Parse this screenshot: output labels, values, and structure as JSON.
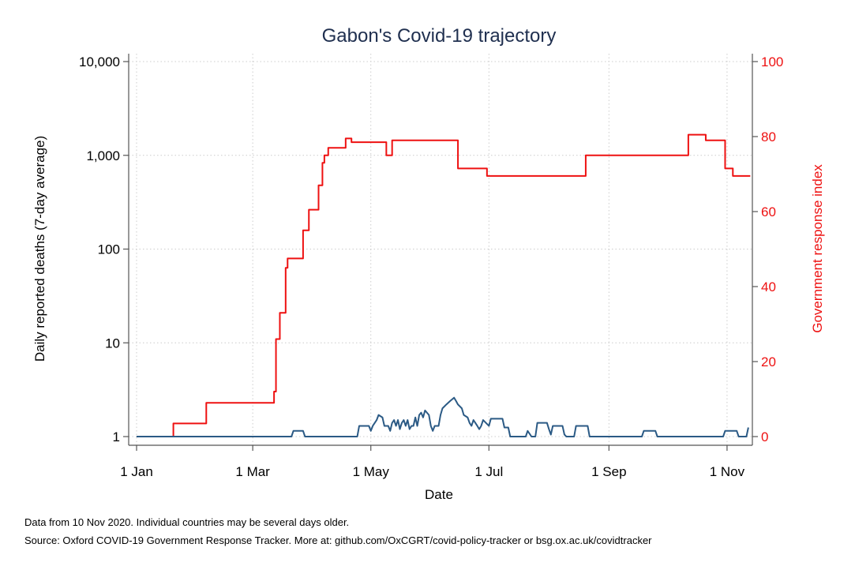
{
  "chart_data": {
    "type": "line",
    "title": "Gabon's Covid-19 trajectory",
    "xlabel": "Date",
    "ylabel_left": "Daily reported deaths (7-day average)",
    "ylabel_right": "Government response index",
    "y_left_scale": "log",
    "y_left_range": [
      1,
      10000
    ],
    "y_left_ticks": [
      "1",
      "10",
      "100",
      "1,000",
      "10,000"
    ],
    "y_right_range": [
      0,
      100
    ],
    "y_right_ticks": [
      "0",
      "20",
      "40",
      "60",
      "80",
      "100"
    ],
    "x_range": [
      "2020-01-01",
      "2020-11-10"
    ],
    "x_ticks": [
      "1 Jan",
      "1 Mar",
      "1 May",
      "1 Jul",
      "1 Sep",
      "1 Nov"
    ],
    "grid": true,
    "colors": {
      "deaths": "#2b5a85",
      "response": "#ee1111",
      "axis": "#555555",
      "grid": "#cccccc",
      "title": "#1f2f4f"
    },
    "series": [
      {
        "axis": "right",
        "points": [
          [
            "2020-01-01",
            0
          ],
          [
            "2020-01-20",
            0
          ],
          [
            "2020-01-20",
            3.5
          ],
          [
            "2020-02-06",
            3.5
          ],
          [
            "2020-02-06",
            9
          ],
          [
            "2020-03-12",
            9
          ],
          [
            "2020-03-12",
            12
          ],
          [
            "2020-03-13",
            12
          ],
          [
            "2020-03-13",
            26
          ],
          [
            "2020-03-15",
            26
          ],
          [
            "2020-03-15",
            33
          ],
          [
            "2020-03-18",
            33
          ],
          [
            "2020-03-18",
            45
          ],
          [
            "2020-03-19",
            45
          ],
          [
            "2020-03-19",
            47.5
          ],
          [
            "2020-03-27",
            47.5
          ],
          [
            "2020-03-27",
            55
          ],
          [
            "2020-03-30",
            55
          ],
          [
            "2020-03-30",
            60.5
          ],
          [
            "2020-04-04",
            60.5
          ],
          [
            "2020-04-04",
            67
          ],
          [
            "2020-04-06",
            67
          ],
          [
            "2020-04-06",
            73
          ],
          [
            "2020-04-07",
            73
          ],
          [
            "2020-04-07",
            75
          ],
          [
            "2020-04-09",
            75
          ],
          [
            "2020-04-09",
            77
          ],
          [
            "2020-04-18",
            77
          ],
          [
            "2020-04-18",
            79.5
          ],
          [
            "2020-04-21",
            79.5
          ],
          [
            "2020-04-21",
            78.5
          ],
          [
            "2020-05-09",
            78.5
          ],
          [
            "2020-05-09",
            75
          ],
          [
            "2020-05-12",
            75
          ],
          [
            "2020-05-12",
            79
          ],
          [
            "2020-06-15",
            79
          ],
          [
            "2020-06-15",
            71.5
          ],
          [
            "2020-06-30",
            71.5
          ],
          [
            "2020-06-30",
            69.5
          ],
          [
            "2020-08-20",
            69.5
          ],
          [
            "2020-08-20",
            75
          ],
          [
            "2020-10-12",
            75
          ],
          [
            "2020-10-12",
            80.5
          ],
          [
            "2020-10-21",
            80.5
          ],
          [
            "2020-10-21",
            79
          ],
          [
            "2020-10-31",
            79
          ],
          [
            "2020-10-31",
            71.5
          ],
          [
            "2020-11-04",
            71.5
          ],
          [
            "2020-11-04",
            69.5
          ],
          [
            "2020-11-13",
            69.5
          ]
        ]
      },
      {
        "axis": "left",
        "points": [
          [
            "2020-01-01",
            1
          ],
          [
            "2020-03-21",
            1
          ],
          [
            "2020-03-22",
            1.15
          ],
          [
            "2020-03-27",
            1.15
          ],
          [
            "2020-03-28",
            1
          ],
          [
            "2020-04-24",
            1
          ],
          [
            "2020-04-25",
            1.3
          ],
          [
            "2020-04-30",
            1.3
          ],
          [
            "2020-05-01",
            1.15
          ],
          [
            "2020-05-02",
            1.3
          ],
          [
            "2020-05-04",
            1.5
          ],
          [
            "2020-05-05",
            1.7
          ],
          [
            "2020-05-07",
            1.6
          ],
          [
            "2020-05-08",
            1.3
          ],
          [
            "2020-05-10",
            1.3
          ],
          [
            "2020-05-11",
            1.15
          ],
          [
            "2020-05-12",
            1.4
          ],
          [
            "2020-05-13",
            1.5
          ],
          [
            "2020-05-14",
            1.3
          ],
          [
            "2020-05-15",
            1.5
          ],
          [
            "2020-05-16",
            1.2
          ],
          [
            "2020-05-17",
            1.4
          ],
          [
            "2020-05-18",
            1.5
          ],
          [
            "2020-05-19",
            1.3
          ],
          [
            "2020-05-20",
            1.5
          ],
          [
            "2020-05-21",
            1.2
          ],
          [
            "2020-05-22",
            1.3
          ],
          [
            "2020-05-23",
            1.3
          ],
          [
            "2020-05-24",
            1.6
          ],
          [
            "2020-05-25",
            1.3
          ],
          [
            "2020-05-26",
            1.7
          ],
          [
            "2020-05-27",
            1.8
          ],
          [
            "2020-05-28",
            1.6
          ],
          [
            "2020-05-29",
            1.9
          ],
          [
            "2020-05-31",
            1.7
          ],
          [
            "2020-06-01",
            1.3
          ],
          [
            "2020-06-02",
            1.15
          ],
          [
            "2020-06-03",
            1.3
          ],
          [
            "2020-06-05",
            1.3
          ],
          [
            "2020-06-06",
            1.7
          ],
          [
            "2020-06-07",
            2.0
          ],
          [
            "2020-06-09",
            2.2
          ],
          [
            "2020-06-11",
            2.4
          ],
          [
            "2020-06-13",
            2.6
          ],
          [
            "2020-06-14",
            2.4
          ],
          [
            "2020-06-15",
            2.2
          ],
          [
            "2020-06-17",
            2.0
          ],
          [
            "2020-06-18",
            1.7
          ],
          [
            "2020-06-20",
            1.6
          ],
          [
            "2020-06-21",
            1.4
          ],
          [
            "2020-06-22",
            1.3
          ],
          [
            "2020-06-23",
            1.5
          ],
          [
            "2020-06-24",
            1.4
          ],
          [
            "2020-06-25",
            1.3
          ],
          [
            "2020-06-26",
            1.2
          ],
          [
            "2020-06-27",
            1.3
          ],
          [
            "2020-06-28",
            1.5
          ],
          [
            "2020-07-01",
            1.3
          ],
          [
            "2020-07-02",
            1.55
          ],
          [
            "2020-07-08",
            1.55
          ],
          [
            "2020-07-09",
            1.25
          ],
          [
            "2020-07-11",
            1.25
          ],
          [
            "2020-07-12",
            1
          ],
          [
            "2020-07-20",
            1
          ],
          [
            "2020-07-21",
            1.15
          ],
          [
            "2020-07-23",
            1
          ],
          [
            "2020-07-25",
            1
          ],
          [
            "2020-07-26",
            1.4
          ],
          [
            "2020-07-31",
            1.4
          ],
          [
            "2020-08-01",
            1.2
          ],
          [
            "2020-08-02",
            1.05
          ],
          [
            "2020-08-03",
            1.3
          ],
          [
            "2020-08-08",
            1.3
          ],
          [
            "2020-08-09",
            1.05
          ],
          [
            "2020-08-10",
            1
          ],
          [
            "2020-08-14",
            1
          ],
          [
            "2020-08-15",
            1.3
          ],
          [
            "2020-08-21",
            1.3
          ],
          [
            "2020-08-22",
            1
          ],
          [
            "2020-09-18",
            1
          ],
          [
            "2020-09-19",
            1.15
          ],
          [
            "2020-09-25",
            1.15
          ],
          [
            "2020-09-26",
            1
          ],
          [
            "2020-10-30",
            1
          ],
          [
            "2020-10-31",
            1.15
          ],
          [
            "2020-11-06",
            1.15
          ],
          [
            "2020-11-07",
            1
          ],
          [
            "2020-11-11",
            1
          ],
          [
            "2020-11-12",
            1.25
          ]
        ]
      }
    ]
  },
  "notes": {
    "line1": "Data from 10 Nov 2020. Individual countries may be several days older.",
    "line2": "Source: Oxford COVID-19 Government Response Tracker. More at: github.com/OxCGRT/covid-policy-tracker or bsg.ox.ac.uk/covidtracker"
  }
}
